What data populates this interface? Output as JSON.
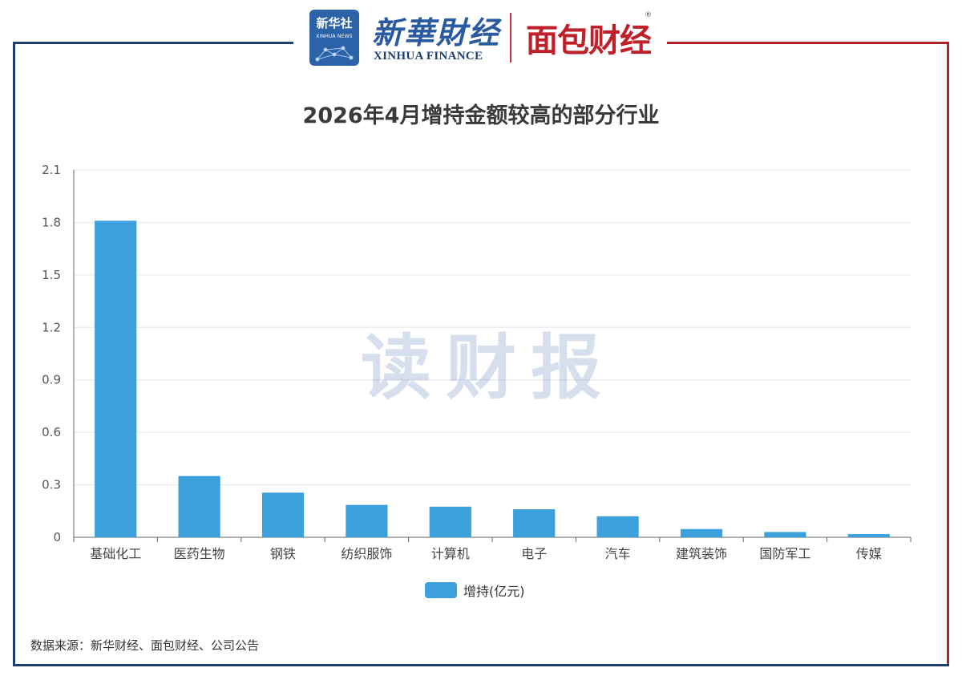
{
  "header": {
    "xinhua_badge_cn": "新华社",
    "xinhua_badge_en": "XINHUA NEWS",
    "xinhua_finance_cn": "新華財经",
    "xinhua_finance_en": "XINHUA FINANCE",
    "mianbao_logo": "面包财经",
    "registered_mark": "®"
  },
  "watermark": "读财报",
  "colors": {
    "bar": "#3ba0dc",
    "frame_left": "#1f3f73",
    "frame_right": "#b0222d"
  },
  "chart_data": {
    "type": "bar",
    "title": "2026年4月增持金额较高的部分行业",
    "categories": [
      "基础化工",
      "医药生物",
      "钢铁",
      "纺织服饰",
      "计算机",
      "电子",
      "汽车",
      "建筑装饰",
      "国防军工",
      "传媒"
    ],
    "series": [
      {
        "name": "增持(亿元)",
        "values": [
          1.81,
          0.35,
          0.255,
          0.185,
          0.175,
          0.16,
          0.12,
          0.047,
          0.03,
          0.018
        ]
      }
    ],
    "ylim": [
      0,
      2.1
    ],
    "yticks": [
      "0",
      "0.3",
      "0.6",
      "0.9",
      "1.2",
      "1.5",
      "1.8",
      "2.1"
    ],
    "grid": true,
    "legend_position": "bottom-center"
  },
  "source": "数据来源：新华财经、面包财经、公司公告"
}
